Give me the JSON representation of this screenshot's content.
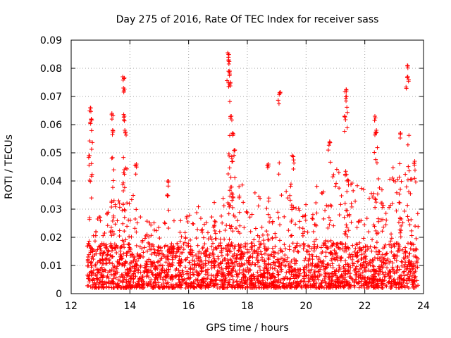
{
  "chart_data": {
    "type": "scatter",
    "title": "Day 275 of 2016, Rate Of TEC Index for receiver sass",
    "xlabel": "GPS time / hours",
    "ylabel": "ROTI / TECUs",
    "xlim": [
      12,
      24
    ],
    "ylim": [
      0,
      0.09
    ],
    "xticks": [
      "12",
      "14",
      "16",
      "18",
      "20",
      "22",
      "24"
    ],
    "yticks": [
      "0",
      "0.01",
      "0.02",
      "0.03",
      "0.04",
      "0.05",
      "0.06",
      "0.07",
      "0.08",
      "0.09"
    ],
    "grid": true,
    "marker": "+",
    "color": "#ff0000",
    "series": [
      {
        "name": "sass",
        "peaks": [
          {
            "x": 12.65,
            "y": 0.066
          },
          {
            "x": 12.68,
            "y": 0.062
          },
          {
            "x": 12.6,
            "y": 0.049
          },
          {
            "x": 13.4,
            "y": 0.064
          },
          {
            "x": 13.42,
            "y": 0.058
          },
          {
            "x": 13.78,
            "y": 0.077
          },
          {
            "x": 13.8,
            "y": 0.073
          },
          {
            "x": 13.82,
            "y": 0.063
          },
          {
            "x": 13.85,
            "y": 0.058
          },
          {
            "x": 14.2,
            "y": 0.046
          },
          {
            "x": 15.3,
            "y": 0.04
          },
          {
            "x": 17.35,
            "y": 0.0855
          },
          {
            "x": 17.37,
            "y": 0.083
          },
          {
            "x": 17.38,
            "y": 0.079
          },
          {
            "x": 17.4,
            "y": 0.075
          },
          {
            "x": 17.45,
            "y": 0.063
          },
          {
            "x": 17.5,
            "y": 0.057
          },
          {
            "x": 17.55,
            "y": 0.051
          },
          {
            "x": 18.7,
            "y": 0.046
          },
          {
            "x": 19.1,
            "y": 0.0715
          },
          {
            "x": 19.55,
            "y": 0.049
          },
          {
            "x": 20.8,
            "y": 0.054
          },
          {
            "x": 21.35,
            "y": 0.0725
          },
          {
            "x": 21.38,
            "y": 0.07
          },
          {
            "x": 21.32,
            "y": 0.063
          },
          {
            "x": 22.35,
            "y": 0.063
          },
          {
            "x": 22.38,
            "y": 0.058
          },
          {
            "x": 23.2,
            "y": 0.057
          },
          {
            "x": 23.45,
            "y": 0.081
          },
          {
            "x": 23.47,
            "y": 0.077
          },
          {
            "x": 23.7,
            "y": 0.047
          }
        ],
        "envelope": [
          {
            "x": 12.6,
            "y": 0.03
          },
          {
            "x": 13.0,
            "y": 0.027
          },
          {
            "x": 13.5,
            "y": 0.035
          },
          {
            "x": 14.0,
            "y": 0.04
          },
          {
            "x": 14.5,
            "y": 0.026
          },
          {
            "x": 15.0,
            "y": 0.025
          },
          {
            "x": 15.5,
            "y": 0.026
          },
          {
            "x": 16.0,
            "y": 0.028
          },
          {
            "x": 16.5,
            "y": 0.034
          },
          {
            "x": 17.0,
            "y": 0.033
          },
          {
            "x": 17.5,
            "y": 0.04
          },
          {
            "x": 18.0,
            "y": 0.039
          },
          {
            "x": 18.5,
            "y": 0.036
          },
          {
            "x": 19.0,
            "y": 0.032
          },
          {
            "x": 19.5,
            "y": 0.042
          },
          {
            "x": 20.0,
            "y": 0.033
          },
          {
            "x": 20.5,
            "y": 0.04
          },
          {
            "x": 21.0,
            "y": 0.045
          },
          {
            "x": 21.5,
            "y": 0.042
          },
          {
            "x": 22.0,
            "y": 0.038
          },
          {
            "x": 22.5,
            "y": 0.042
          },
          {
            "x": 23.0,
            "y": 0.045
          },
          {
            "x": 23.5,
            "y": 0.045
          },
          {
            "x": 23.8,
            "y": 0.035
          }
        ],
        "x_range": [
          12.55,
          23.82
        ],
        "baseline_min": 0.002
      }
    ]
  }
}
